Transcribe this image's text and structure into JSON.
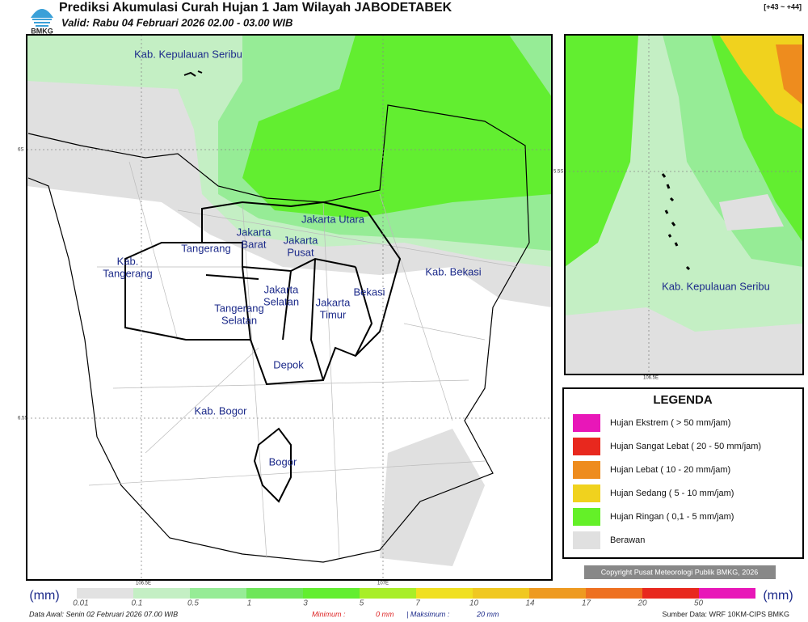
{
  "header": {
    "logo": "BMKG",
    "title": "Prediksi Akumulasi Curah Hujan 1 Jam Wilayah JABODETABEK",
    "valid": "Valid: Rabu 04 Februari 2026 02.00 - 03.00 WIB",
    "offset": "[+43 ~ +44]"
  },
  "map": {
    "labels": [
      [
        "Kab. Kepulauan Seribu"
      ],
      [
        "Jakarta Utara"
      ],
      [
        "Jakarta",
        "Barat"
      ],
      [
        "Jakarta",
        "Pusat"
      ],
      [
        "Tangerang"
      ],
      [
        "Kab.",
        "Tangerang"
      ],
      [
        "Kab. Bekasi"
      ],
      [
        "Jakarta",
        "Selatan"
      ],
      [
        "Jakarta",
        "Timur"
      ],
      [
        "Bekasi"
      ],
      [
        "Tangerang",
        "Selatan"
      ],
      [
        "Depok"
      ],
      [
        "Kab. Bogor"
      ],
      [
        "Bogor"
      ]
    ],
    "grid_labels": [
      "6S",
      "6.5S",
      "106.5E",
      "107E"
    ]
  },
  "inset": {
    "labels": [
      "Kab. Kepulauan Seribu"
    ],
    "grid_labels": [
      "5.5S",
      "106.5E"
    ]
  },
  "legend": {
    "title": "LEGENDA",
    "items": [
      "Hujan Ekstrem ( > 50 mm/jam)",
      "Hujan Sangat Lebat ( 20 - 50 mm/jam)",
      "Hujan Lebat ( 10 - 20 mm/jam)",
      "Hujan Sedang ( 5 - 10 mm/jam)",
      "Hujan Ringan ( 0,1 - 5 mm/jam)",
      "Berawan"
    ]
  },
  "copyright": "Copyright Pusat Meteorologi Publik BMKG, 2026",
  "colorbar": {
    "unit_left": "(mm)",
    "unit_right": "(mm)",
    "ticks": [
      "0.01",
      "0.1",
      "0.5",
      "1",
      "3",
      "5",
      "7",
      "10",
      "14",
      "17",
      "20",
      "50"
    ]
  },
  "footer": {
    "start": "Data Awal: Senin 02 Februari 2026 07.00 WIB",
    "min_label": "Minimum :",
    "min_value": "0 mm",
    "max_label": "| Maksimum :",
    "max_value": "20 mm",
    "source": "Sumber Data: WRF 10KM-CIPS BMKG"
  }
}
